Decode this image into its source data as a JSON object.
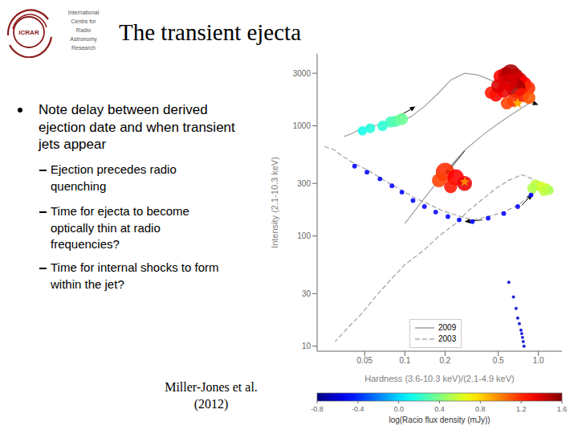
{
  "chart_data": {
    "type": "scatter",
    "title": "The transient ejecta",
    "x_label": "Hardness (3.6-10.3 keV)/(2.1-4.9 keV)",
    "y_label": "Intensity (2.1-10.3 keV)",
    "log": true,
    "xlim": [
      0.022,
      1.5
    ],
    "ylim": [
      9,
      4500
    ],
    "xticks": [
      0.05,
      0.1,
      0.2,
      0.5,
      {
        "value": 1.0,
        "label": "1.0"
      }
    ],
    "yticks": [
      10,
      30,
      100,
      300,
      1000,
      3000
    ],
    "grid": false,
    "legend": "lower left",
    "series": [
      {
        "name": "2009",
        "type": "line",
        "line_style": "solid",
        "color": "#888888",
        "x": [
          0.035,
          0.04,
          0.045,
          0.055,
          0.065,
          0.075,
          0.09,
          0.11,
          0.14,
          0.18,
          0.22,
          0.28,
          0.35,
          0.44,
          0.55,
          0.65,
          0.75,
          0.85,
          0.65,
          0.5,
          0.38,
          0.28,
          0.2,
          0.14,
          0.1
        ],
        "values": [
          800,
          850,
          920,
          980,
          1030,
          1080,
          1120,
          1200,
          1500,
          2000,
          2600,
          3000,
          2900,
          2600,
          2200,
          1900,
          1700,
          1600,
          1300,
          1050,
          820,
          600,
          380,
          220,
          130
        ]
      },
      {
        "name": "2003",
        "type": "line",
        "line_style": "dashed",
        "color": "#888888",
        "x": [
          0.025,
          0.03,
          0.032,
          0.035,
          0.04,
          0.048,
          0.058,
          0.07,
          0.085,
          0.1,
          0.12,
          0.15,
          0.19,
          0.24,
          0.32,
          0.42,
          0.55,
          0.7,
          0.9,
          1.1,
          0.9,
          0.75,
          0.6,
          0.48,
          0.38,
          0.3,
          0.24,
          0.18,
          0.14,
          0.1,
          0.078,
          0.06,
          0.048,
          0.038,
          0.03
        ],
        "values": [
          650,
          600,
          560,
          520,
          470,
          420,
          370,
          320,
          280,
          250,
          220,
          195,
          170,
          155,
          140,
          150,
          165,
          190,
          240,
          290,
          330,
          360,
          320,
          270,
          215,
          170,
          130,
          100,
          75,
          55,
          40,
          28,
          20,
          15,
          11
        ]
      },
      {
        "type": "scatter",
        "marker": "circle",
        "x": [
          0.52,
          0.57,
          0.62,
          0.67,
          0.72,
          0.78,
          0.84,
          0.68,
          0.6,
          0.55,
          0.75,
          0.65,
          0.58,
          0.85,
          0.48,
          0.44,
          0.5
        ],
        "values": [
          2800,
          2900,
          3000,
          2800,
          2600,
          2400,
          2200,
          2200,
          2500,
          2100,
          1900,
          1700,
          1600,
          1800,
          1900,
          2000,
          2300
        ],
        "sizes": [
          160,
          200,
          260,
          220,
          200,
          180,
          160,
          300,
          240,
          180,
          160,
          140,
          120,
          130,
          140,
          120,
          160
        ],
        "radio": [
          1.3,
          1.4,
          1.5,
          1.45,
          1.4,
          1.3,
          1.2,
          1.5,
          1.4,
          1.35,
          1.25,
          1.2,
          1.15,
          1.1,
          1.3,
          1.25,
          1.38
        ]
      },
      {
        "type": "scatter",
        "marker": "circle",
        "x": [
          0.2,
          0.24,
          0.28,
          0.18,
          0.22
        ],
        "values": [
          380,
          340,
          300,
          320,
          280
        ],
        "sizes": [
          280,
          220,
          180,
          160,
          140
        ],
        "radio": [
          1.2,
          1.3,
          1.35,
          1.15,
          1.25
        ]
      },
      {
        "type": "scatter",
        "marker": "circle",
        "x": [
          0.95,
          1.05,
          1.15,
          0.9,
          1.2,
          1.1
        ],
        "values": [
          290,
          280,
          270,
          270,
          260,
          255
        ],
        "sizes": [
          100,
          90,
          80,
          85,
          75,
          80
        ],
        "radio": [
          0.55,
          0.6,
          0.58,
          0.52,
          0.5,
          0.55
        ]
      },
      {
        "type": "scatter",
        "marker": "circle",
        "x": [
          0.068,
          0.078,
          0.085,
          0.095,
          0.055,
          0.048
        ],
        "values": [
          1000,
          1080,
          1100,
          1150,
          950,
          900
        ],
        "sizes": [
          90,
          100,
          110,
          120,
          80,
          70
        ],
        "radio": [
          0.2,
          0.25,
          0.3,
          0.35,
          0.18,
          0.15
        ]
      },
      {
        "type": "scatter",
        "marker": "star",
        "x": [
          0.7,
          0.28
        ],
        "values": [
          1600,
          310
        ],
        "sizes": [
          60,
          50
        ],
        "radio": [
          0.9,
          1.0
        ]
      },
      {
        "type": "scatter",
        "marker": "circle",
        "x": [
          0.042,
          0.052,
          0.065,
          0.08,
          0.095,
          0.115,
          0.14,
          0.17,
          0.21,
          0.255,
          0.32,
          0.42,
          0.55,
          0.7,
          0.88
        ],
        "values": [
          430,
          380,
          330,
          285,
          250,
          210,
          185,
          165,
          150,
          140,
          135,
          145,
          160,
          185,
          235
        ],
        "sizes": [
          18,
          18,
          18,
          18,
          18,
          18,
          18,
          18,
          18,
          18,
          18,
          18,
          18,
          18,
          18
        ],
        "radio": [
          -0.5,
          -0.5,
          -0.5,
          -0.5,
          -0.5,
          -0.5,
          -0.5,
          -0.5,
          -0.5,
          -0.5,
          -0.5,
          -0.5,
          -0.5,
          -0.5,
          -0.5
        ]
      },
      {
        "type": "scatter",
        "marker": "circle",
        "x": [
          0.6,
          0.65,
          0.68,
          0.7,
          0.72,
          0.74,
          0.75,
          0.76,
          0.77,
          0.78
        ],
        "values": [
          38,
          28,
          22,
          18,
          16,
          14,
          13,
          12,
          11,
          10
        ],
        "sizes": [
          8,
          8,
          8,
          8,
          8,
          8,
          8,
          8,
          8,
          8
        ],
        "radio": [
          -0.6,
          -0.6,
          -0.6,
          -0.6,
          -0.6,
          -0.6,
          -0.6,
          -0.6,
          -0.6,
          -0.6
        ]
      }
    ],
    "arrows": [
      {
        "from": [
          0.08,
          1120
        ],
        "to": [
          0.12,
          1500
        ]
      },
      {
        "from": [
          0.6,
          2600
        ],
        "to": [
          0.5,
          2000
        ]
      },
      {
        "from": [
          0.82,
          1700
        ],
        "to": [
          1.0,
          1550
        ]
      },
      {
        "from": [
          0.28,
          590
        ],
        "to": [
          0.2,
          360
        ]
      },
      {
        "from": [
          0.38,
          140
        ],
        "to": [
          0.28,
          135
        ]
      },
      {
        "from": [
          0.75,
          190
        ],
        "to": [
          0.9,
          240
        ]
      }
    ],
    "colorbar": {
      "range": [
        -0.8,
        1.6
      ],
      "ticks": [
        -0.8,
        -0.4,
        {
          "value": 0,
          "label": "0.0"
        },
        0.4,
        0.8,
        1.2,
        1.6
      ],
      "label": "log(Racio flux density (mJy))"
    },
    "annotations": {
      "logo": {
        "text": "ICRAR",
        "color": "#8B1A1A",
        "line_color": "#555555",
        "lines": [
          "International",
          "Centre for",
          "Radio",
          "Astronomy",
          "Research"
        ]
      },
      "bullet": [
        "Note delay between derived",
        "ejection date and when transient",
        "jets appear"
      ],
      "sub_bullets": [
        [
          "Ejection precedes radio",
          "quenching"
        ],
        [
          "Time for ejecta to become",
          "optically thin at radio",
          "frequencies?"
        ],
        [
          "Time for internal shocks to form",
          "within the jet?"
        ]
      ],
      "citation": [
        "Miller-Jones et al.",
        "(2012)"
      ]
    }
  }
}
